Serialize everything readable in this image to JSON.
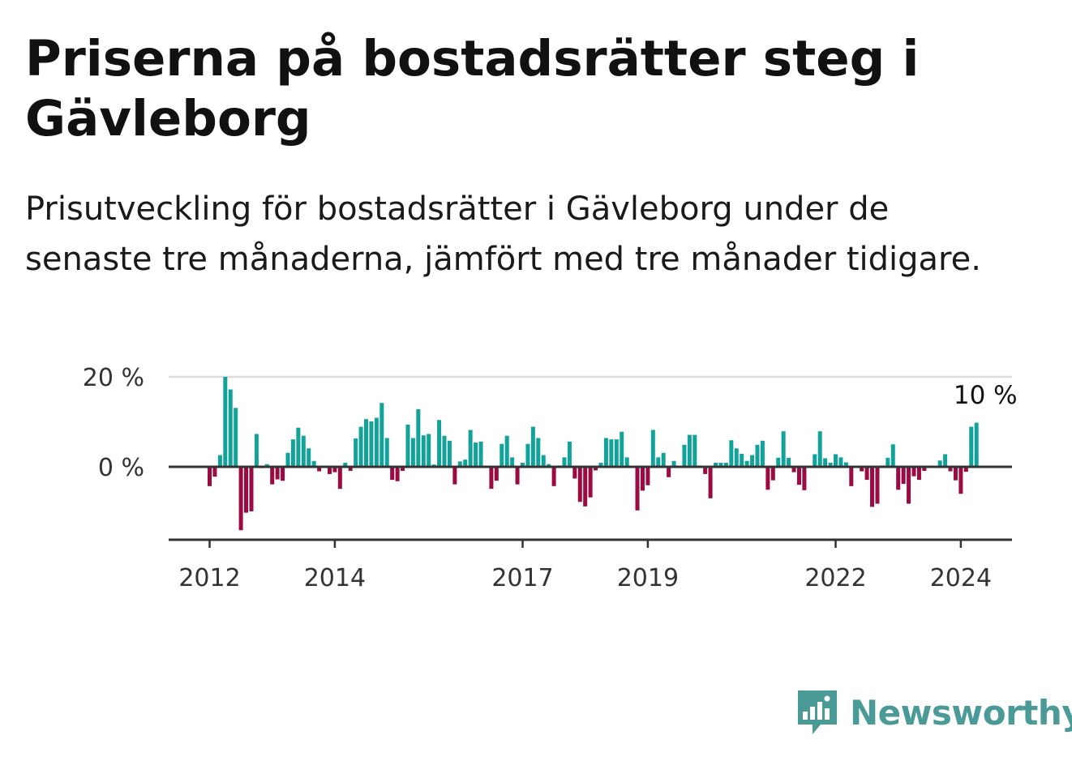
{
  "header": {
    "title": "Priserna på bostadsrätter steg i Gävleborg",
    "subtitle": "Prisutveckling för bostadsrätter i Gävleborg under de senaste tre månaderna, jämfört med tre månader tidigare."
  },
  "brand": {
    "name": "Newsworthy",
    "logo_icon": "newsworthy-bar-chart-speech-bubble-icon",
    "color": "#4a9a98"
  },
  "chart_data": {
    "type": "bar",
    "ylabel": "",
    "xlabel": "",
    "ylim": [
      -16,
      20
    ],
    "y_ticks": [
      {
        "value": 0,
        "label": "0 %"
      },
      {
        "value": 20,
        "label": "20 %"
      }
    ],
    "x_ticks": [
      {
        "year": 2012,
        "label": "2012"
      },
      {
        "year": 2014,
        "label": "2014"
      },
      {
        "year": 2017,
        "label": "2017"
      },
      {
        "year": 2019,
        "label": "2019"
      },
      {
        "year": 2022,
        "label": "2022"
      },
      {
        "year": 2024,
        "label": "2024"
      }
    ],
    "x_start": "2012-01",
    "frequency": "monthly",
    "positive_color": "#11a39a",
    "negative_color": "#9b0a40",
    "grid": "horizontal",
    "annotation": {
      "text": "10 %",
      "month_index": 148
    },
    "values": [
      -4.3,
      -2.2,
      2.6,
      20.0,
      17.2,
      13.1,
      -14.1,
      -10.2,
      -9.9,
      7.3,
      -0.3,
      0.6,
      -3.9,
      -2.8,
      -3.1,
      3.1,
      6.1,
      8.7,
      6.9,
      4.1,
      1.3,
      -1.0,
      0.1,
      -1.6,
      -1.2,
      -4.9,
      0.9,
      -0.9,
      6.3,
      8.9,
      10.6,
      10.1,
      10.9,
      14.2,
      6.4,
      -2.9,
      -3.2,
      -0.9,
      9.4,
      6.4,
      12.8,
      7.0,
      7.3,
      0.5,
      10.4,
      6.9,
      5.8,
      -3.9,
      1.2,
      1.6,
      8.2,
      5.4,
      5.6,
      0.2,
      -4.9,
      -3.1,
      5.1,
      6.9,
      2.1,
      -3.9,
      0.9,
      5.1,
      8.9,
      6.4,
      2.6,
      0.6,
      -4.3,
      0.3,
      2.1,
      5.6,
      -2.6,
      -7.8,
      -8.8,
      -6.8,
      -0.8,
      0.9,
      6.4,
      6.1,
      6.1,
      7.8,
      2.1,
      0.1,
      -9.7,
      -5.3,
      -4.1,
      8.2,
      2.1,
      3.1,
      -2.3,
      1.3,
      0.2,
      4.9,
      7.1,
      7.1,
      0.3,
      -1.6,
      -7.0,
      0.9,
      0.9,
      0.9,
      5.9,
      4.1,
      2.9,
      1.3,
      2.6,
      4.9,
      5.8,
      -5.1,
      -3.0,
      2.0,
      7.9,
      2.0,
      -1.2,
      -4.0,
      -5.2,
      0.0,
      2.8,
      7.9,
      1.9,
      0.9,
      2.8,
      2.1,
      1.0,
      -4.3,
      0.2,
      -1.0,
      -2.9,
      -8.9,
      -8.2,
      0.3,
      2.0,
      5.0,
      -5.1,
      -3.8,
      -8.2,
      -2.1,
      -2.9,
      -0.9,
      0.2,
      0.2,
      1.4,
      2.8,
      -1.0,
      -3.0,
      -6.0,
      -1.1,
      8.9,
      9.8
    ]
  }
}
